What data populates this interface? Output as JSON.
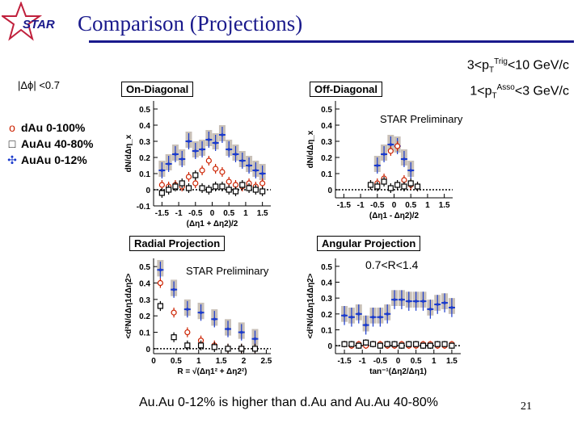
{
  "slide": {
    "title": "Comparison (Projections)",
    "logo_text": "STAR",
    "kinematics_line1": "3<pT Trig<10 GeV/c",
    "kinematics_line2": "1<pT Asso<3 GeV/c",
    "kin1_prefix": "3<p",
    "kin1_sub": "T",
    "kin1_sup": "Trig",
    "kin1_suffix": "<10 GeV/c",
    "kin2_prefix": "1<p",
    "kin2_sub": "T",
    "kin2_sup": "Asso",
    "kin2_suffix": "<3 GeV/c",
    "dphi_cut": "|Δϕ| <0.7",
    "footer": "Au.Au 0-12% is higher than d.Au and Au.Au 40-80%",
    "page_number": "21",
    "star_preliminary": "STAR Preliminary",
    "r_range": "0.7<R<1.4",
    "legend": [
      {
        "marker": "o",
        "label": "dAu 0-100%",
        "color": "#cc2200"
      },
      {
        "marker": "□",
        "label": "AuAu 40-80%",
        "color": "#000000"
      },
      {
        "marker": "✣",
        "label": "AuAu 0-12%",
        "color": "#1a3acc"
      }
    ],
    "colors": {
      "title": "#1a1a8c",
      "dau": "#cc2200",
      "auau_periph": "#000000",
      "auau_central": "#1a3acc",
      "syst": "#c8c0b8"
    }
  },
  "chart_data": [
    {
      "type": "scatter",
      "panel": "On-Diagonal",
      "title": "On-Diagonal",
      "ylabel": "dN/dΔη_x",
      "xlabel": "(Δη1 + Δη2)/2",
      "xlim": [
        -1.75,
        1.75
      ],
      "ylim": [
        -0.1,
        0.55
      ],
      "xticks": [
        -1.5,
        -1,
        -0.5,
        0,
        0.5,
        1,
        1.5
      ],
      "xtick_labels": [
        "-1.5",
        "-1",
        "-0.5",
        "0",
        "0.5",
        "1",
        "1.5"
      ],
      "yticks": [
        -0.1,
        0,
        0.1,
        0.2,
        0.3,
        0.4,
        0.5
      ],
      "ytick_labels": [
        "-0.1",
        "0",
        "0.1",
        "0.2",
        "0.3",
        "0.4",
        "0.5"
      ],
      "dashed_zero": true,
      "series": [
        {
          "name": "AuAu 0-12%",
          "x": [
            -1.5,
            -1.3,
            -1.1,
            -0.9,
            -0.7,
            -0.5,
            -0.3,
            -0.1,
            0.1,
            0.3,
            0.5,
            0.7,
            0.9,
            1.1,
            1.3,
            1.5
          ],
          "y": [
            0.12,
            0.16,
            0.22,
            0.19,
            0.3,
            0.24,
            0.25,
            0.31,
            0.29,
            0.34,
            0.25,
            0.22,
            0.18,
            0.15,
            0.12,
            0.1
          ],
          "err": [
            0.05,
            0.05,
            0.05,
            0.05,
            0.05,
            0.05,
            0.05,
            0.05,
            0.05,
            0.05,
            0.05,
            0.05,
            0.05,
            0.05,
            0.05,
            0.05
          ]
        },
        {
          "name": "dAu 0-100%",
          "x": [
            -1.5,
            -1.3,
            -1.1,
            -0.9,
            -0.7,
            -0.5,
            -0.3,
            -0.1,
            0.1,
            0.3,
            0.5,
            0.7,
            0.9,
            1.1,
            1.3,
            1.5
          ],
          "y": [
            0.03,
            0.02,
            0.03,
            0.02,
            0.08,
            0.04,
            0.12,
            0.18,
            0.13,
            0.11,
            0.05,
            0.03,
            0.02,
            0.04,
            0.02,
            0.04
          ],
          "err": [
            0.03,
            0.03,
            0.03,
            0.03,
            0.03,
            0.03,
            0.03,
            0.03,
            0.03,
            0.03,
            0.03,
            0.03,
            0.03,
            0.03,
            0.03,
            0.03
          ]
        },
        {
          "name": "AuAu 40-80%",
          "x": [
            -1.5,
            -1.3,
            -1.1,
            -0.9,
            -0.7,
            -0.5,
            -0.3,
            -0.1,
            0.1,
            0.3,
            0.5,
            0.7,
            0.9,
            1.1,
            1.3,
            1.5
          ],
          "y": [
            -0.02,
            0.0,
            0.02,
            0.04,
            0.01,
            0.09,
            0.01,
            0.0,
            0.02,
            0.02,
            0.0,
            -0.01,
            0.03,
            0.01,
            0.0,
            -0.01
          ],
          "err": [
            0.03,
            0.03,
            0.03,
            0.03,
            0.03,
            0.03,
            0.03,
            0.03,
            0.03,
            0.03,
            0.03,
            0.03,
            0.03,
            0.03,
            0.03,
            0.03
          ]
        }
      ]
    },
    {
      "type": "scatter",
      "panel": "Off-Diagonal",
      "title": "Off-Diagonal",
      "ylabel": "dN/dΔη_x",
      "xlabel": "(Δη1 - Δη2)/2",
      "xlim": [
        -1.75,
        1.75
      ],
      "ylim": [
        -0.05,
        0.55
      ],
      "xticks": [
        -1.5,
        -1,
        -0.5,
        0,
        0.5,
        1,
        1.5
      ],
      "xtick_labels": [
        "-1.5",
        "-1",
        "-0.5",
        "0",
        "0.5",
        "1",
        "1.5"
      ],
      "yticks": [
        0,
        0.1,
        0.2,
        0.3,
        0.4,
        0.5
      ],
      "ytick_labels": [
        "0",
        "0.1",
        "0.2",
        "0.3",
        "0.4",
        "0.5"
      ],
      "dashed_zero": true,
      "series": [
        {
          "name": "AuAu 0-12%",
          "x": [
            -0.5,
            -0.3,
            -0.1,
            0.1,
            0.3,
            0.5
          ],
          "y": [
            0.15,
            0.22,
            0.28,
            0.27,
            0.19,
            0.12
          ],
          "err": [
            0.05,
            0.05,
            0.05,
            0.05,
            0.05,
            0.05
          ]
        },
        {
          "name": "dAu 0-100%",
          "x": [
            -0.7,
            -0.5,
            -0.3,
            -0.1,
            0.1,
            0.3,
            0.5,
            0.7
          ],
          "y": [
            0.03,
            0.04,
            0.07,
            0.24,
            0.27,
            0.06,
            0.03,
            0.02
          ],
          "err": [
            0.03,
            0.03,
            0.03,
            0.03,
            0.03,
            0.03,
            0.03,
            0.03
          ]
        },
        {
          "name": "AuAu 40-80%",
          "x": [
            -0.7,
            -0.5,
            -0.3,
            -0.1,
            0.1,
            0.3,
            0.5,
            0.7
          ],
          "y": [
            0.03,
            0.02,
            0.05,
            0.01,
            0.03,
            0.02,
            0.04,
            0.02
          ],
          "err": [
            0.03,
            0.03,
            0.03,
            0.03,
            0.03,
            0.03,
            0.03,
            0.03
          ]
        }
      ]
    },
    {
      "type": "scatter",
      "panel": "Radial Projection",
      "title": "Radial Projection",
      "ylabel": "<d²N/dΔη1dΔη2>",
      "xlabel": "R = √(Δη1² + Δη2²)",
      "xlim": [
        0,
        2.6
      ],
      "ylim": [
        -0.03,
        0.55
      ],
      "xticks": [
        0,
        0.5,
        1,
        1.5,
        2,
        2.5
      ],
      "xtick_labels": [
        "0",
        "0.5",
        "1",
        "1.5",
        "2",
        "2.5"
      ],
      "yticks": [
        0,
        0.1,
        0.2,
        0.3,
        0.4,
        0.5
      ],
      "ytick_labels": [
        "0",
        "0.1",
        "0.2",
        "0.3",
        "0.4",
        "0.5"
      ],
      "dashed_zero": true,
      "series": [
        {
          "name": "AuAu 0-12%",
          "x": [
            0.15,
            0.45,
            0.75,
            1.05,
            1.35,
            1.65,
            1.95,
            2.25
          ],
          "y": [
            0.48,
            0.36,
            0.24,
            0.22,
            0.18,
            0.12,
            0.1,
            0.06
          ],
          "err": [
            0.05,
            0.05,
            0.05,
            0.05,
            0.05,
            0.05,
            0.05,
            0.05
          ]
        },
        {
          "name": "dAu 0-100%",
          "x": [
            0.15,
            0.45,
            0.75,
            1.05,
            1.35,
            1.65,
            1.95,
            2.25
          ],
          "y": [
            0.4,
            0.22,
            0.1,
            0.05,
            0.02,
            0.0,
            0.0,
            0.0
          ],
          "err": [
            0.03,
            0.03,
            0.03,
            0.03,
            0.03,
            0.03,
            0.03,
            0.03
          ]
        },
        {
          "name": "AuAu 40-80%",
          "x": [
            0.15,
            0.45,
            0.75,
            1.05,
            1.35,
            1.65,
            1.95,
            2.25
          ],
          "y": [
            0.26,
            0.07,
            0.02,
            0.02,
            0.01,
            0.0,
            0.0,
            0.0
          ],
          "err": [
            0.03,
            0.03,
            0.03,
            0.03,
            0.03,
            0.03,
            0.03,
            0.03
          ]
        }
      ]
    },
    {
      "type": "scatter",
      "panel": "Angular Projection",
      "title": "Angular Projection",
      "ylabel": "<d²N/dΔη1dΔη2>",
      "xlabel": "tan⁻¹(Δη2/Δη1)",
      "xlim": [
        -1.75,
        1.75
      ],
      "ylim": [
        -0.05,
        0.55
      ],
      "xticks": [
        -1.5,
        -1,
        -0.5,
        0,
        0.5,
        1,
        1.5
      ],
      "xtick_labels": [
        "-1.5",
        "-1",
        "-0.5",
        "0",
        "0.5",
        "1",
        "1.5"
      ],
      "yticks": [
        0,
        0.1,
        0.2,
        0.3,
        0.4,
        0.5
      ],
      "ytick_labels": [
        "0",
        "0.1",
        "0.2",
        "0.3",
        "0.4",
        "0.5"
      ],
      "dashed_zero": true,
      "series": [
        {
          "name": "AuAu 0-12%",
          "x": [
            -1.5,
            -1.3,
            -1.1,
            -0.9,
            -0.7,
            -0.5,
            -0.3,
            -0.1,
            0.1,
            0.3,
            0.5,
            0.7,
            0.9,
            1.1,
            1.3,
            1.5
          ],
          "y": [
            0.19,
            0.18,
            0.2,
            0.13,
            0.18,
            0.18,
            0.2,
            0.29,
            0.29,
            0.28,
            0.28,
            0.28,
            0.23,
            0.26,
            0.27,
            0.24
          ],
          "err": [
            0.06,
            0.06,
            0.06,
            0.06,
            0.06,
            0.06,
            0.06,
            0.06,
            0.06,
            0.06,
            0.06,
            0.06,
            0.06,
            0.06,
            0.06,
            0.06
          ]
        },
        {
          "name": "dAu 0-100%",
          "x": [
            -1.5,
            -1.3,
            -1.1,
            -0.9,
            -0.7,
            -0.5,
            -0.3,
            -0.1,
            0.1,
            0.3,
            0.5,
            0.7,
            0.9,
            1.1,
            1.3,
            1.5
          ],
          "y": [
            0.01,
            0.0,
            0.01,
            0.0,
            0.01,
            0.01,
            0.0,
            0.0,
            0.01,
            0.0,
            0.0,
            0.01,
            0.01,
            0.0,
            0.0,
            0.01
          ],
          "err": [
            0.02,
            0.02,
            0.02,
            0.02,
            0.02,
            0.02,
            0.02,
            0.02,
            0.02,
            0.02,
            0.02,
            0.02,
            0.02,
            0.02,
            0.02,
            0.02
          ]
        },
        {
          "name": "AuAu 40-80%",
          "x": [
            -1.5,
            -1.3,
            -1.1,
            -0.9,
            -0.7,
            -0.5,
            -0.3,
            -0.1,
            0.1,
            0.3,
            0.5,
            0.7,
            0.9,
            1.1,
            1.3,
            1.5
          ],
          "y": [
            0.01,
            0.01,
            0.0,
            0.02,
            0.01,
            0.0,
            0.01,
            0.01,
            0.0,
            0.01,
            0.01,
            0.0,
            0.0,
            0.01,
            0.01,
            0.0
          ],
          "err": [
            0.02,
            0.02,
            0.02,
            0.02,
            0.02,
            0.02,
            0.02,
            0.02,
            0.02,
            0.02,
            0.02,
            0.02,
            0.02,
            0.02,
            0.02,
            0.02
          ]
        }
      ]
    }
  ]
}
